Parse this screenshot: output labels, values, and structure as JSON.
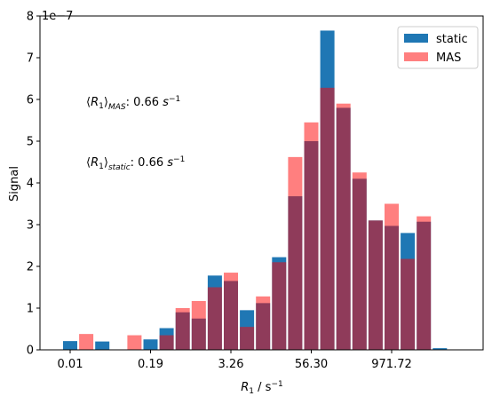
{
  "chart_data": {
    "type": "bar",
    "xlabel_base": "R",
    "xlabel_sub": "1",
    "xlabel_unit": " / s",
    "xlabel_unit_sup": "−1",
    "ylabel": "Signal",
    "y_scale_label": "1e−7",
    "x_tick_labels": [
      "0.01",
      "0.19",
      "3.26",
      "56.30",
      "971.72"
    ],
    "y_tick_labels": [
      "0",
      "1",
      "2",
      "3",
      "4",
      "5",
      "6",
      "7",
      "8"
    ],
    "ylim": [
      0,
      8
    ],
    "legend_position": "top-right",
    "legend": [
      "static",
      "MAS"
    ],
    "annotations": [
      {
        "sub": "MAS",
        "value": ": 0.66 ",
        "unit": "s",
        "unit_sup": "−1"
      },
      {
        "sub": "static",
        "value": ": 0.66 ",
        "unit": "s",
        "unit_sup": "−1"
      }
    ],
    "series": [
      {
        "name": "static",
        "color": "#1f77b4",
        "values": [
          0.21,
          0,
          0.2,
          0,
          0,
          0.25,
          0.52,
          0.9,
          0.75,
          1.78,
          1.65,
          0.95,
          1.12,
          2.22,
          3.68,
          5.0,
          7.65,
          5.8,
          4.1,
          3.1,
          2.97,
          2.8,
          3.07,
          0.04
        ]
      },
      {
        "name": "MAS",
        "color": "#ff0000",
        "alpha": 0.5,
        "values": [
          0,
          0.38,
          0,
          0,
          0.35,
          0,
          0.35,
          1.0,
          1.17,
          1.5,
          1.85,
          0.55,
          1.28,
          2.1,
          4.62,
          5.45,
          6.28,
          5.9,
          4.25,
          3.1,
          3.5,
          2.18,
          3.2,
          0
        ]
      }
    ]
  }
}
